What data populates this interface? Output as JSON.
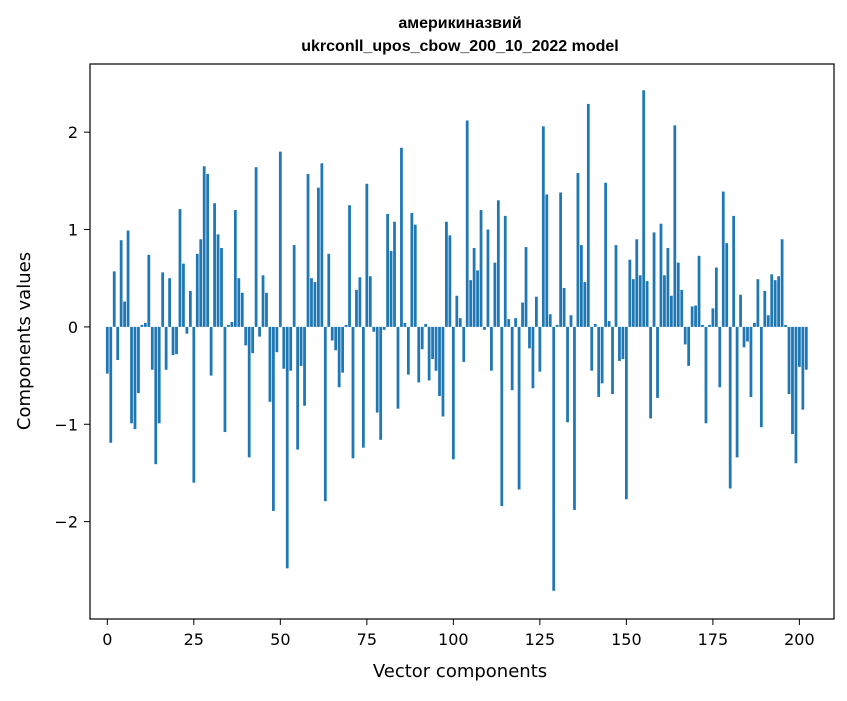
{
  "chart_data": {
    "type": "bar",
    "title": "америкиназвий\nukrconll_upos_cbow_200_10_2022 model",
    "title_lines": [
      "америкиназвий",
      "ukrconll_upos_cbow_200_10_2022 model"
    ],
    "xlabel": "Vector components",
    "ylabel": "Components values",
    "xlim": [
      -5,
      210
    ],
    "ylim": [
      -3.0,
      2.7
    ],
    "xticks": [
      0,
      25,
      50,
      75,
      100,
      125,
      150,
      175,
      200
    ],
    "yticks": [
      -2,
      -1,
      0,
      1,
      2
    ],
    "xtick_labels": [
      "0",
      "25",
      "50",
      "75",
      "100",
      "125",
      "150",
      "175",
      "200"
    ],
    "ytick_labels": [
      "−2",
      "−1",
      "0",
      "1",
      "2"
    ],
    "grid": false,
    "bar_color": "#1f77b4",
    "values": [
      -0.48,
      -1.19,
      0.57,
      -0.34,
      0.89,
      0.26,
      0.99,
      -0.99,
      -1.05,
      -0.68,
      0.02,
      0.04,
      0.74,
      -0.44,
      -1.41,
      -0.99,
      0.56,
      -0.44,
      0.5,
      -0.29,
      -0.28,
      1.21,
      0.65,
      -0.07,
      0.37,
      -1.6,
      0.75,
      0.9,
      1.65,
      1.57,
      -0.5,
      1.27,
      0.95,
      0.81,
      -1.08,
      0.02,
      0.05,
      1.2,
      0.5,
      0.35,
      -0.19,
      -1.34,
      -0.27,
      1.64,
      -0.1,
      0.53,
      0.35,
      -0.77,
      -1.89,
      -0.26,
      1.8,
      -0.43,
      -2.48,
      -0.45,
      0.84,
      -1.26,
      -0.4,
      -0.81,
      1.57,
      0.5,
      0.46,
      1.43,
      1.68,
      -1.79,
      0.75,
      -0.14,
      -0.24,
      -0.62,
      -0.47,
      0.02,
      1.25,
      -1.35,
      0.38,
      0.51,
      -1.24,
      1.47,
      0.52,
      -0.05,
      -0.88,
      -1.16,
      -0.03,
      1.16,
      0.78,
      1.08,
      -0.84,
      1.84,
      0.04,
      -0.49,
      1.17,
      1.05,
      -0.57,
      -0.23,
      0.03,
      -0.55,
      -0.33,
      -0.45,
      -0.71,
      -0.92,
      1.08,
      0.94,
      -1.36,
      0.32,
      0.09,
      -0.36,
      2.12,
      0.48,
      0.81,
      0.58,
      1.2,
      -0.03,
      1.0,
      -0.45,
      0.66,
      1.3,
      -1.84,
      1.14,
      0.08,
      -0.65,
      0.09,
      -1.67,
      0.25,
      0.82,
      -0.22,
      -0.63,
      0.31,
      -0.46,
      2.06,
      1.36,
      0.13,
      -2.71,
      0.02,
      1.38,
      0.4,
      -0.98,
      0.12,
      -1.88,
      1.58,
      0.84,
      0.46,
      2.29,
      -0.45,
      0.03,
      -0.72,
      -0.58,
      1.48,
      0.06,
      -0.69,
      0.84,
      -0.35,
      -0.33,
      -1.77,
      0.69,
      0.49,
      0.9,
      0.53,
      2.43,
      0.47,
      -0.94,
      0.97,
      -0.73,
      1.06,
      0.53,
      0.81,
      0.32,
      2.07,
      0.66,
      0.38,
      -0.18,
      -0.4,
      0.21,
      0.22,
      0.73,
      0.02,
      -0.99,
      0.02,
      0.19,
      0.61,
      -0.62,
      1.39,
      0.86,
      -1.66,
      1.14,
      -1.34,
      0.33,
      -0.21,
      -0.15,
      -0.72,
      0.04,
      0.49,
      -1.03,
      0.37,
      0.12,
      0.54,
      0.48,
      0.52,
      0.9,
      0.02,
      -0.69,
      -1.1,
      -1.4,
      -0.41,
      -0.85,
      -0.44
    ]
  }
}
